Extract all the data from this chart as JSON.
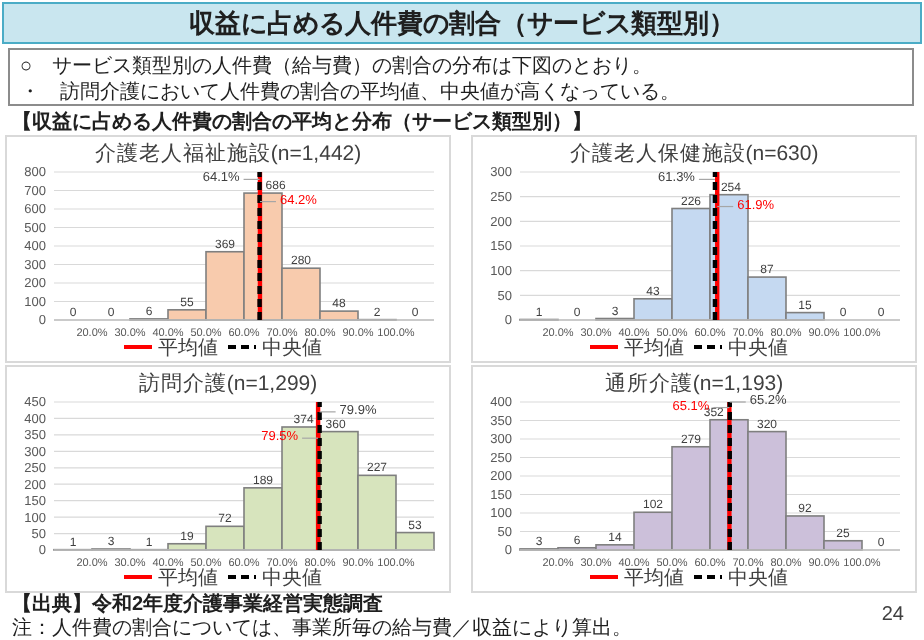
{
  "chart_data": [
    {
      "type": "other",
      "title": "収益に占める人件費の割合（サービス類型別）",
      "annotations": [
        "○　サービス類型別の人件費（給与費）の割合の分布は下図のとおり。",
        "・　訪問介護において人件費の割合の平均値、中央値が高くなっている。",
        "【収益に占める人件費の割合の平均と分布（サービス類型別）】",
        "【出典】令和2年度介護事業経営実態調査",
        "注：人件費の割合については、事業所毎の給与費／収益により算出。",
        "24"
      ]
    },
    {
      "type": "histogram",
      "title": "介護老人福祉施設(n=1,442)",
      "bins": [
        10,
        20,
        30,
        40,
        50,
        60,
        70,
        80,
        90,
        100,
        110
      ],
      "values": [
        0,
        0,
        6,
        55,
        369,
        686,
        280,
        48,
        2,
        0
      ],
      "color": "#f8cbad",
      "data_labels": true,
      "grid": "y",
      "legend": "bottom",
      "xlim": [
        10,
        110
      ],
      "xticks": [
        {
          "value": 20,
          "label": "20.0%"
        },
        {
          "value": 30,
          "label": "30.0%"
        },
        {
          "value": 40,
          "label": "40.0%"
        },
        {
          "value": 50,
          "label": "50.0%"
        },
        {
          "value": 60,
          "label": "60.0%"
        },
        {
          "value": 70,
          "label": "70.0%"
        },
        {
          "value": 80,
          "label": "80.0%"
        },
        {
          "value": 90,
          "label": "90.0%"
        },
        {
          "value": 100,
          "label": "100.0%"
        }
      ],
      "ylim": [
        0,
        800
      ],
      "yticks": [
        0,
        100,
        200,
        300,
        400,
        500,
        600,
        700,
        800
      ],
      "ref_lines": [
        {
          "axis": "x",
          "value": 64.2,
          "label": "平均値",
          "color": "#ff0000",
          "line_style": "solid"
        },
        {
          "axis": "x",
          "value": 64.1,
          "label": "中央値",
          "color": "#000000",
          "line_style": "dashed"
        }
      ],
      "annotations": [
        {
          "text": "64.2%",
          "x": 64.2,
          "y": 640
        },
        {
          "text": "64.1%",
          "x": 64.1,
          "y": 760
        }
      ]
    },
    {
      "type": "histogram",
      "title": "介護老人保健施設(n=630)",
      "bins": [
        10,
        20,
        30,
        40,
        50,
        60,
        70,
        80,
        90,
        100,
        110
      ],
      "values": [
        1,
        0,
        3,
        43,
        226,
        254,
        87,
        15,
        0,
        0
      ],
      "color": "#c5d9f1",
      "data_labels": true,
      "grid": "y",
      "legend": "bottom",
      "xlim": [
        10,
        110
      ],
      "xticks": [
        {
          "value": 20,
          "label": "20.0%"
        },
        {
          "value": 30,
          "label": "30.0%"
        },
        {
          "value": 40,
          "label": "40.0%"
        },
        {
          "value": 50,
          "label": "50.0%"
        },
        {
          "value": 60,
          "label": "60.0%"
        },
        {
          "value": 70,
          "label": "70.0%"
        },
        {
          "value": 80,
          "label": "80.0%"
        },
        {
          "value": 90,
          "label": "90.0%"
        },
        {
          "value": 100,
          "label": "100.0%"
        }
      ],
      "ylim": [
        0,
        300
      ],
      "yticks": [
        0,
        50,
        100,
        150,
        200,
        250,
        300
      ],
      "ref_lines": [
        {
          "axis": "x",
          "value": 61.9,
          "label": "平均値",
          "color": "#ff0000",
          "line_style": "solid"
        },
        {
          "axis": "x",
          "value": 61.3,
          "label": "中央値",
          "color": "#000000",
          "line_style": "dashed"
        }
      ],
      "annotations": [
        {
          "text": "61.9%",
          "x": 61.9,
          "y": 230
        },
        {
          "text": "61.3%",
          "x": 61.3,
          "y": 285
        }
      ]
    },
    {
      "type": "histogram",
      "title": "訪問介護(n=1,299)",
      "bins": [
        10,
        20,
        30,
        40,
        50,
        60,
        70,
        80,
        90,
        100,
        110
      ],
      "values": [
        1,
        3,
        1,
        19,
        72,
        189,
        374,
        360,
        227,
        53
      ],
      "color": "#d7e4bd",
      "data_labels": true,
      "grid": "y",
      "legend": "bottom",
      "xlim": [
        10,
        110
      ],
      "xticks": [
        {
          "value": 20,
          "label": "20.0%"
        },
        {
          "value": 30,
          "label": "30.0%"
        },
        {
          "value": 40,
          "label": "40.0%"
        },
        {
          "value": 50,
          "label": "50.0%"
        },
        {
          "value": 60,
          "label": "60.0%"
        },
        {
          "value": 70,
          "label": "70.0%"
        },
        {
          "value": 80,
          "label": "80.0%"
        },
        {
          "value": 90,
          "label": "90.0%"
        },
        {
          "value": 100,
          "label": "100.0%"
        }
      ],
      "ylim": [
        0,
        450
      ],
      "yticks": [
        0,
        50,
        100,
        150,
        200,
        250,
        300,
        350,
        400,
        450
      ],
      "ref_lines": [
        {
          "axis": "x",
          "value": 79.5,
          "label": "平均値",
          "color": "#ff0000",
          "line_style": "solid"
        },
        {
          "axis": "x",
          "value": 79.9,
          "label": "中央値",
          "color": "#000000",
          "line_style": "dashed"
        }
      ],
      "annotations": [
        {
          "text": "79.5%",
          "x": 79.5,
          "y": 340
        },
        {
          "text": "79.9%",
          "x": 79.9,
          "y": 420
        }
      ]
    },
    {
      "type": "histogram",
      "title": "通所介護(n=1,193)",
      "bins": [
        10,
        20,
        30,
        40,
        50,
        60,
        70,
        80,
        90,
        100,
        110
      ],
      "values": [
        3,
        6,
        14,
        102,
        279,
        352,
        320,
        92,
        25,
        0
      ],
      "color": "#ccc0da",
      "data_labels": true,
      "grid": "y",
      "legend": "bottom",
      "xlim": [
        10,
        110
      ],
      "xticks": [
        {
          "value": 20,
          "label": "20.0%"
        },
        {
          "value": 30,
          "label": "30.0%"
        },
        {
          "value": 40,
          "label": "40.0%"
        },
        {
          "value": 50,
          "label": "50.0%"
        },
        {
          "value": 60,
          "label": "60.0%"
        },
        {
          "value": 70,
          "label": "70.0%"
        },
        {
          "value": 80,
          "label": "80.0%"
        },
        {
          "value": 90,
          "label": "90.0%"
        },
        {
          "value": 100,
          "label": "100.0%"
        }
      ],
      "ylim": [
        0,
        400
      ],
      "yticks": [
        0,
        50,
        100,
        150,
        200,
        250,
        300,
        350,
        400
      ],
      "ref_lines": [
        {
          "axis": "x",
          "value": 65.1,
          "label": "平均値",
          "color": "#ff0000",
          "line_style": "solid"
        },
        {
          "axis": "x",
          "value": 65.2,
          "label": "中央値",
          "color": "#000000",
          "line_style": "dashed"
        }
      ],
      "annotations": [
        {
          "text": "65.1%",
          "x": 65.1,
          "y": 385
        },
        {
          "text": "65.2%",
          "x": 65.2,
          "y": 400
        }
      ]
    }
  ]
}
